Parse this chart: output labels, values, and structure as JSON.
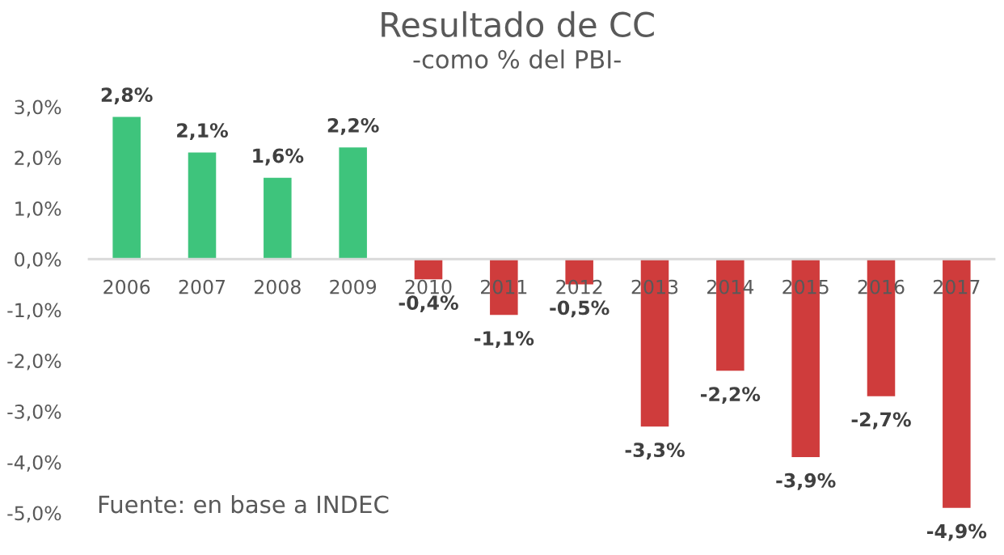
{
  "chart_data": {
    "type": "bar",
    "title": "Resultado de CC",
    "subtitle": "-como % del PBI-",
    "categories": [
      "2006",
      "2007",
      "2008",
      "2009",
      "2010",
      "2011",
      "2012",
      "2013",
      "2014",
      "2015",
      "2016",
      "2017"
    ],
    "values": [
      2.8,
      2.1,
      1.6,
      2.2,
      -0.4,
      -1.1,
      -0.5,
      -3.3,
      -2.2,
      -3.9,
      -2.7,
      -4.9
    ],
    "colors": [
      "#3ec47c",
      "#3ec47c",
      "#3ec47c",
      "#3ec47c",
      "#cf3c3c",
      "#cf3c3c",
      "#cf3c3c",
      "#cf3c3c",
      "#cf3c3c",
      "#cf3c3c",
      "#cf3c3c",
      "#cf3c3c"
    ],
    "value_labels": [
      "2,8%",
      "2,1%",
      "1,6%",
      "2,2%",
      "-0,4%",
      "-1,1%",
      "-0,5%",
      "-3,3%",
      "-2,2%",
      "-3,9%",
      "-2,7%",
      "-4,9%"
    ],
    "ylim": [
      -5,
      3
    ],
    "yticks": [
      {
        "value": 3,
        "label": "3,0%"
      },
      {
        "value": 2,
        "label": "2,0%"
      },
      {
        "value": 1,
        "label": "1,0%"
      },
      {
        "value": 0,
        "label": "0,0%"
      },
      {
        "value": -1,
        "label": "-1,0%"
      },
      {
        "value": -2,
        "label": "-2,0%"
      },
      {
        "value": -3,
        "label": "-3,0%"
      },
      {
        "value": -4,
        "label": "-4,0%"
      },
      {
        "value": -5,
        "label": "-5,0%"
      }
    ],
    "annotations": [
      "Fuente: en base a INDEC"
    ]
  }
}
